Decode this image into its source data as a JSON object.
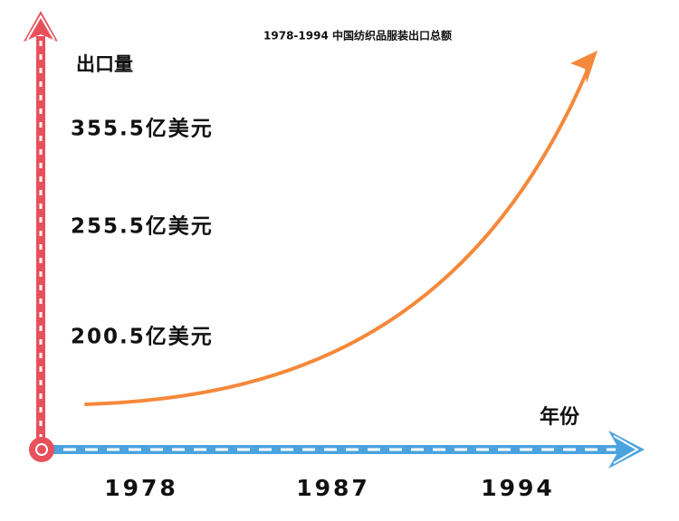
{
  "header": {
    "title": "1978-1994 中国纺织品服装出口总额"
  },
  "y_axis": {
    "label": "出口量",
    "labels": [
      "355.5亿美元",
      "255.5亿美元",
      "200.5亿美元"
    ]
  },
  "x_axis": {
    "label": "年份",
    "labels": [
      "1978",
      "1987",
      "1994"
    ]
  }
}
